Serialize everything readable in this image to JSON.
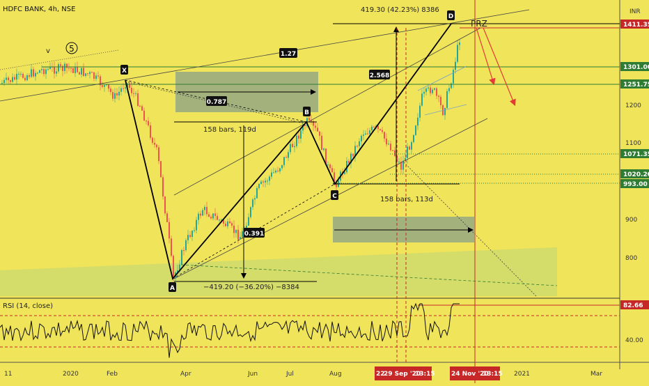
{
  "chart_data": {
    "type": "candlestick",
    "symbol": "HDFC BANK, 4h, NSE",
    "currency": "INR",
    "x_labels": [
      "11",
      "2020",
      "Feb",
      "Apr",
      "Jun",
      "Jul",
      "Aug",
      "2021",
      "Mar"
    ],
    "x_highlight_labels": [
      "29 Sep '20",
      "13:15",
      "24 Nov '20",
      "13:15"
    ],
    "x_highlight_partial": "22",
    "price_scale": [
      1200.0,
      1100.0,
      900.0,
      800.0
    ],
    "price_tags": [
      {
        "value": "1411.35",
        "color": "#c62828"
      },
      {
        "value": "1301.00",
        "color": "#2e7d32"
      },
      {
        "value": "1251.75",
        "color": "#2e7d32"
      },
      {
        "value": "1071.35",
        "color": "#2e7d32"
      },
      {
        "value": "1020.20",
        "color": "#2e7d32"
      },
      {
        "value": "993.00",
        "color": "#2e7d32"
      }
    ],
    "pattern_points": [
      {
        "label": "X",
        "price": 1260
      },
      {
        "label": "A",
        "price": 750
      },
      {
        "label": "B",
        "price": 1150
      },
      {
        "label": "C",
        "price": 1000
      },
      {
        "label": "D",
        "price": 1415
      }
    ],
    "ratios": [
      {
        "text": "0.787"
      },
      {
        "text": "0.391"
      },
      {
        "text": "1.27"
      },
      {
        "text": "2.568"
      }
    ],
    "annotations": {
      "wave_v": "v",
      "wave_5": "5",
      "prz": "PRZ",
      "bars_ab": "158 bars, 119d",
      "bars_cd": "158 bars, 113d",
      "measure_down": "−419.20 (−36.20%) −8384",
      "measure_up": "419.30 (42.23%) 8386"
    },
    "rsi": {
      "title": "RSI (14, close)",
      "current": "82.66",
      "scale_label": "40.00",
      "upper_band": 70,
      "lower_band": 30
    },
    "colors": {
      "background": "#f0e45a",
      "up_candle": "#26a69a",
      "down_candle": "#ef5350",
      "pattern": "#000000",
      "target_arrow": "#e53935",
      "support": "#2e7d32"
    }
  }
}
